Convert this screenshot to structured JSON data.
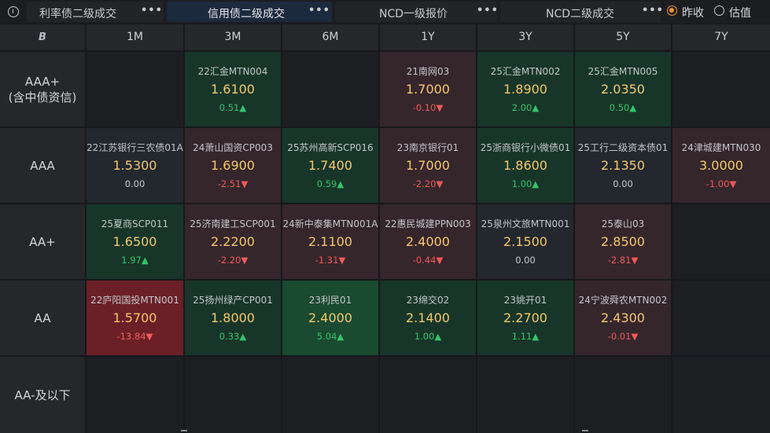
{
  "tabs": [
    {
      "label": "利率债二级成交",
      "active": false
    },
    {
      "label": "信用债二级成交",
      "active": true
    },
    {
      "label": "NCD一级报价",
      "active": false
    },
    {
      "label": "NCD二级成交",
      "active": false
    }
  ],
  "more_label": "•••",
  "radios": [
    {
      "label": "昨收",
      "selected": true
    },
    {
      "label": "估值",
      "selected": false
    }
  ],
  "corner_icon": "B",
  "columns": [
    "1M",
    "3M",
    "6M",
    "1Y",
    "3Y",
    "5Y",
    "7Y"
  ],
  "rows": [
    {
      "label": "AAA+\n(含中债资信)",
      "cells": [
        null,
        {
          "name": "22汇金MTN004",
          "yield": "1.6100",
          "change": "0.51▲",
          "dir": "up",
          "bg": "green"
        },
        null,
        {
          "name": "21南网03",
          "yield": "1.7000",
          "change": "-0.10▼",
          "dir": "down",
          "bg": "red"
        },
        {
          "name": "25汇金MTN002",
          "yield": "1.8900",
          "change": "2.00▲",
          "dir": "up",
          "bg": "green"
        },
        {
          "name": "25汇金MTN005",
          "yield": "2.0350",
          "change": "0.50▲",
          "dir": "up",
          "bg": "green"
        },
        null
      ]
    },
    {
      "label": "AAA",
      "cells": [
        {
          "name": "22江苏银行三农债01A",
          "yield": "1.5300",
          "change": "0.00",
          "dir": "flat",
          "bg": "neutral"
        },
        {
          "name": "24萧山国资CP003",
          "yield": "1.6900",
          "change": "-2.51▼",
          "dir": "down",
          "bg": "red"
        },
        {
          "name": "25苏州高新SCP016",
          "yield": "1.7400",
          "change": "0.59▲",
          "dir": "up",
          "bg": "green"
        },
        {
          "name": "23南京银行01",
          "yield": "1.7000",
          "change": "-2.20▼",
          "dir": "down",
          "bg": "red"
        },
        {
          "name": "25浙商银行小微债01",
          "yield": "1.8600",
          "change": "1.00▲",
          "dir": "up",
          "bg": "green"
        },
        {
          "name": "25工行二级资本债01",
          "yield": "2.1350",
          "change": "0.00",
          "dir": "flat",
          "bg": "neutral"
        },
        {
          "name": "24津城建MTN030",
          "yield": "3.0000",
          "change": "-1.00▼",
          "dir": "down",
          "bg": "red"
        }
      ]
    },
    {
      "label": "AA+",
      "cells": [
        {
          "name": "25夏商SCP011",
          "yield": "1.6500",
          "change": "1.97▲",
          "dir": "up",
          "bg": "green"
        },
        {
          "name": "25济南建工SCP001",
          "yield": "2.2200",
          "change": "-2.20▼",
          "dir": "down",
          "bg": "red"
        },
        {
          "name": "24新中泰集MTN001A",
          "yield": "2.1100",
          "change": "-1.31▼",
          "dir": "down",
          "bg": "red"
        },
        {
          "name": "22惠民城建PPN003",
          "yield": "2.4000",
          "change": "-0.44▼",
          "dir": "down",
          "bg": "red"
        },
        {
          "name": "25泉州文旅MTN001",
          "yield": "2.1500",
          "change": "0.00",
          "dir": "flat",
          "bg": "neutral"
        },
        {
          "name": "25泰山03",
          "yield": "2.8500",
          "change": "-2.81▼",
          "dir": "down",
          "bg": "red"
        },
        null
      ]
    },
    {
      "label": "AA",
      "cells": [
        {
          "name": "22庐阳国投MTN001",
          "yield": "1.5700",
          "change": "-13.84▼",
          "dir": "down",
          "bg": "red2"
        },
        {
          "name": "25扬州绿产CP001",
          "yield": "1.8000",
          "change": "0.33▲",
          "dir": "up",
          "bg": "green"
        },
        {
          "name": "23利民01",
          "yield": "2.4000",
          "change": "5.04▲",
          "dir": "up",
          "bg": "green2"
        },
        {
          "name": "23绵交02",
          "yield": "2.1400",
          "change": "1.00▲",
          "dir": "up",
          "bg": "green"
        },
        {
          "name": "23姚开01",
          "yield": "2.2700",
          "change": "1.11▲",
          "dir": "up",
          "bg": "green"
        },
        {
          "name": "24宁波舜农MTN002",
          "yield": "2.4300",
          "change": "-0.01▼",
          "dir": "down",
          "bg": "red"
        },
        null
      ]
    },
    {
      "label": "AA-及以下",
      "cells": [
        null,
        null,
        null,
        null,
        null,
        null,
        null
      ]
    }
  ]
}
